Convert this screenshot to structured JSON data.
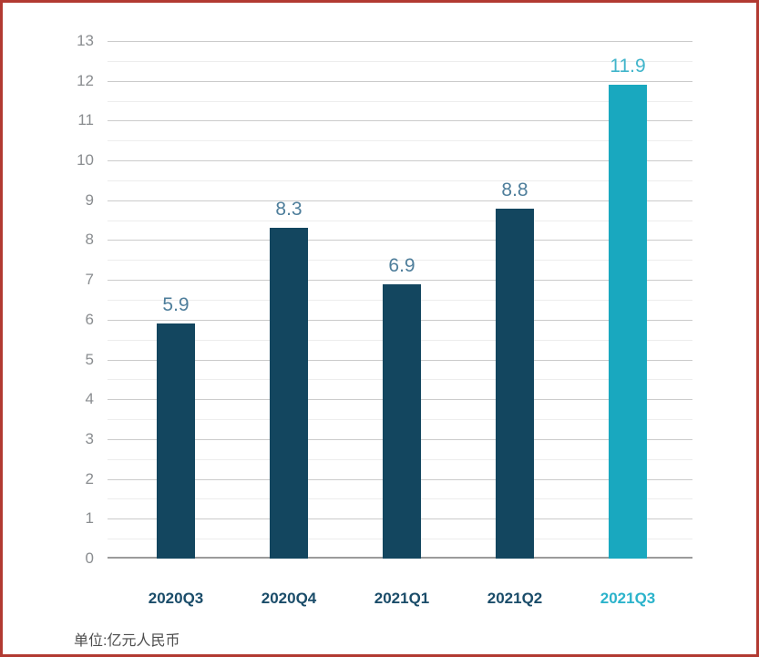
{
  "frame": {
    "border_color": "#b23a32",
    "background": "#ffffff"
  },
  "chart_data": {
    "type": "bar",
    "categories": [
      "2020Q3",
      "2020Q4",
      "2021Q1",
      "2021Q2",
      "2021Q3"
    ],
    "values": [
      5.9,
      8.3,
      6.9,
      8.8,
      11.9
    ],
    "value_labels": [
      "5.9",
      "8.3",
      "6.9",
      "8.8",
      "11.9"
    ],
    "title": "",
    "xlabel": "",
    "ylabel": "",
    "ylim": [
      0,
      13
    ],
    "y_tick_step": 1,
    "y_minor_step": 0.5,
    "grid": true,
    "legend_position": "none",
    "highlight_index": 4,
    "unit_note": "单位:亿元人民币",
    "colors": {
      "bar_default": "#13465f",
      "bar_highlight": "#19a8bf",
      "value_label_default": "#4e7e9b",
      "value_label_highlight": "#41b5cb",
      "category_label_default": "#1a4c69",
      "category_label_highlight": "#2bb3cb",
      "tick_label": "#8a8d90",
      "grid_major": "#cbcbcb",
      "grid_minor": "#ededed",
      "axis_line": "#9b9b9b",
      "unit_note": "#4d4d4d"
    }
  }
}
